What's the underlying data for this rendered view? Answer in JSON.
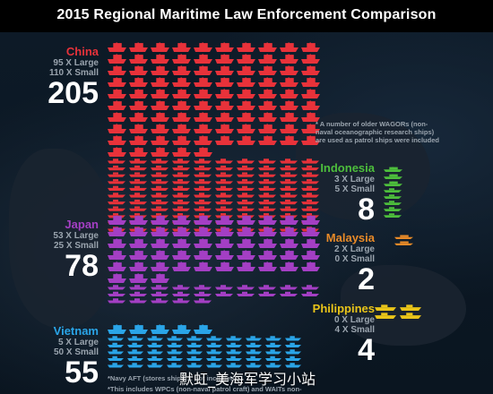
{
  "title": "2015 Regional Maritime Law Enforcement Comparison",
  "colors": {
    "china": "#e8323a",
    "japan": "#a43fc4",
    "vietnam": "#2aa5e8",
    "indonesia": "#4dbe3c",
    "malaysia": "#e88a28",
    "philippines": "#e9c419"
  },
  "chart_data": {
    "type": "bar",
    "categories": [
      "China",
      "Japan",
      "Vietnam",
      "Indonesia",
      "Malaysia",
      "Philippines"
    ],
    "series": [
      {
        "name": "Large",
        "values": [
          95,
          53,
          5,
          3,
          2,
          0
        ]
      },
      {
        "name": "Small",
        "values": [
          110,
          25,
          50,
          5,
          0,
          4
        ]
      }
    ],
    "totals": [
      205,
      78,
      55,
      8,
      2,
      4
    ],
    "countries": [
      {
        "name": "China",
        "large_text": "95 X Large",
        "small_text": "110 X Small",
        "total_text": "205"
      },
      {
        "name": "Japan",
        "large_text": "53 X Large",
        "small_text": "25 X Small",
        "total_text": "78"
      },
      {
        "name": "Vietnam",
        "large_text": "5 X Large",
        "small_text": "50 X Small",
        "total_text": "55"
      },
      {
        "name": "Indonesia",
        "large_text": "3 X Large",
        "small_text": "5 X Small",
        "total_text": "8"
      },
      {
        "name": "Malaysia",
        "large_text": "2 X Large",
        "small_text": "0 X Small",
        "total_text": "2"
      },
      {
        "name": "Philippines",
        "large_text": "0 X Large",
        "small_text": "4 X Small",
        "total_text": "4"
      }
    ],
    "notes": {
      "china": "* A number of older WAGORs (non-naval oceanographic research ships) are used as patrol ships were included",
      "vietnam": "*Navy AFT (stores ships)... not included",
      "vietnam2": "*This includes WPCs (non-naval patrol craft) and WAITs non-"
    }
  },
  "watermark": "默虹_美海军学习小站"
}
